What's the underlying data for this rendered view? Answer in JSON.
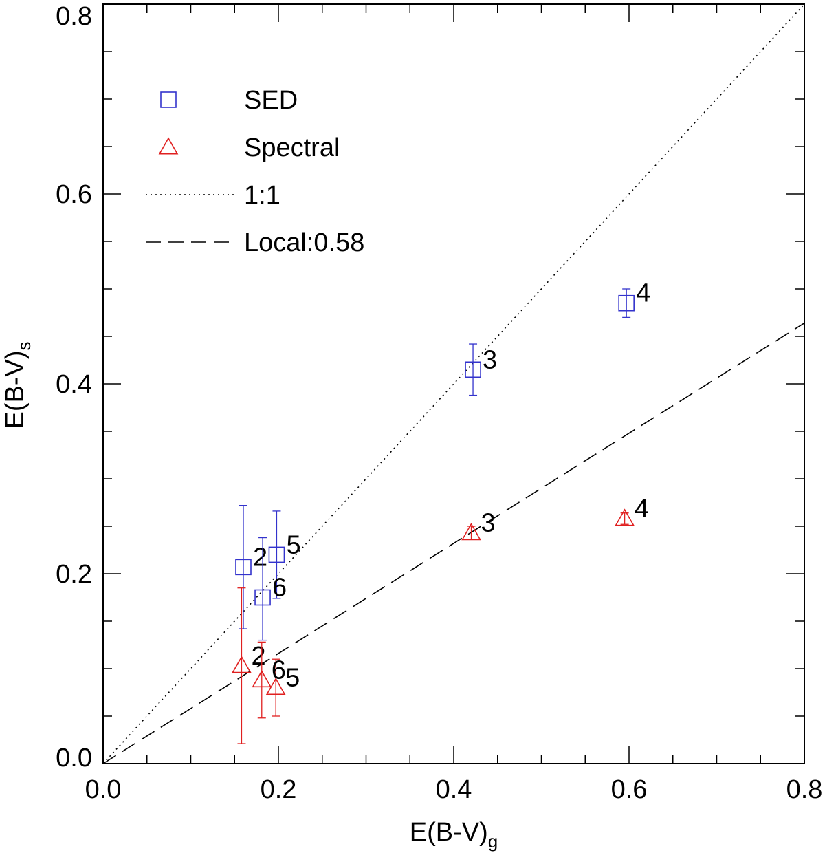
{
  "chart_data": {
    "type": "scatter",
    "title": "",
    "xlabel": "E(B-V)",
    "xlabel_sub": "g",
    "ylabel": "E(B-V)",
    "ylabel_sub": "s",
    "xlim": [
      0.0,
      0.8
    ],
    "ylim": [
      0.0,
      0.8
    ],
    "xticks": [
      "0.0",
      "0.2",
      "0.4",
      "0.6",
      "0.8"
    ],
    "yticks": [
      "0.0",
      "0.2",
      "0.4",
      "0.6",
      "0.8"
    ],
    "grid": false,
    "legend_position": "top-left",
    "colors": {
      "sed": "#3333cc",
      "spectral": "#e02020",
      "axis": "#000000"
    },
    "series": [
      {
        "name": "SED",
        "marker": "square",
        "color": "#3333cc",
        "points": [
          {
            "label": "2",
            "x": 0.16,
            "y": 0.207,
            "err_lo": 0.065,
            "err_hi": 0.065
          },
          {
            "label": "3",
            "x": 0.422,
            "y": 0.415,
            "err_lo": 0.027,
            "err_hi": 0.027
          },
          {
            "label": "4",
            "x": 0.597,
            "y": 0.485,
            "err_lo": 0.015,
            "err_hi": 0.015
          },
          {
            "label": "5",
            "x": 0.198,
            "y": 0.22,
            "err_lo": 0.046,
            "err_hi": 0.046
          },
          {
            "label": "6",
            "x": 0.182,
            "y": 0.175,
            "err_lo": 0.045,
            "err_hi": 0.063
          }
        ]
      },
      {
        "name": "Spectral",
        "marker": "triangle",
        "color": "#e02020",
        "points": [
          {
            "label": "2",
            "x": 0.158,
            "y": 0.103,
            "err_lo": 0.082,
            "err_hi": 0.082
          },
          {
            "label": "3",
            "x": 0.42,
            "y": 0.243,
            "err_lo": 0.007,
            "err_hi": 0.007
          },
          {
            "label": "4",
            "x": 0.595,
            "y": 0.258,
            "err_lo": 0.006,
            "err_hi": 0.006
          },
          {
            "label": "5",
            "x": 0.197,
            "y": 0.08,
            "err_lo": 0.03,
            "err_hi": 0.03
          },
          {
            "label": "6",
            "x": 0.181,
            "y": 0.088,
            "err_lo": 0.04,
            "err_hi": 0.04
          }
        ]
      }
    ],
    "lines": [
      {
        "name": "1:1",
        "style": "dotted",
        "slope": 1.0
      },
      {
        "name": "Local:0.58",
        "style": "dashed",
        "slope": 0.58
      }
    ],
    "legend": [
      "SED",
      "Spectral",
      "1:1",
      "Local:0.58"
    ]
  }
}
